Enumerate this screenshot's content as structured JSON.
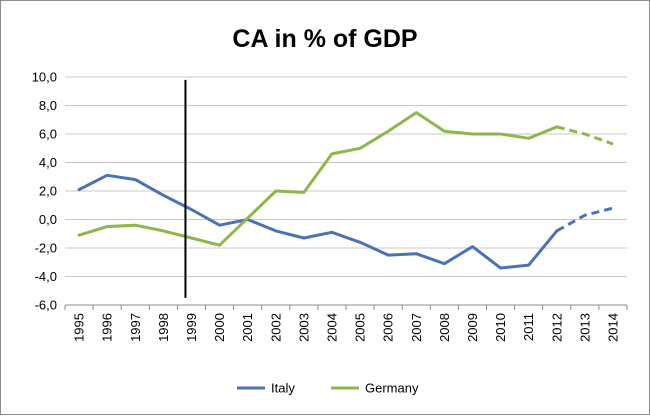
{
  "chart_data": {
    "type": "line",
    "title": "CA in % of GDP",
    "xlabel": "",
    "ylabel": "",
    "ylim": [
      -6.0,
      10.0
    ],
    "ytick_step": 2.0,
    "y_tick_labels": [
      "-6,0",
      "-4,0",
      "-2,0",
      "0,0",
      "2,0",
      "4,0",
      "6,0",
      "8,0",
      "10,0"
    ],
    "categories": [
      "1995",
      "1996",
      "1997",
      "1998",
      "1999",
      "2000",
      "2001",
      "2002",
      "2003",
      "2004",
      "2005",
      "2006",
      "2007",
      "2008",
      "2009",
      "2010",
      "2011",
      "2012",
      "2013",
      "2014"
    ],
    "grid": "horizontal",
    "legend_position": "bottom",
    "annotation_vline_at": "1999",
    "forecast_from": "2012",
    "series": [
      {
        "name": "Italy",
        "color": "#4a72b8",
        "values": [
          2.1,
          3.1,
          2.8,
          1.7,
          0.7,
          -0.4,
          0.0,
          -0.8,
          -1.3,
          -0.9,
          -1.6,
          -2.5,
          -2.4,
          -3.1,
          -1.9,
          -3.4,
          -3.2,
          -0.8,
          0.3,
          0.8
        ]
      },
      {
        "name": "Germany",
        "color": "#8fb64a",
        "values": [
          -1.1,
          -0.5,
          -0.4,
          -0.8,
          -1.3,
          -1.8,
          0.1,
          2.0,
          1.9,
          4.6,
          5.0,
          6.2,
          7.5,
          6.2,
          6.0,
          6.0,
          5.7,
          6.5,
          6.0,
          5.3
        ]
      }
    ]
  }
}
